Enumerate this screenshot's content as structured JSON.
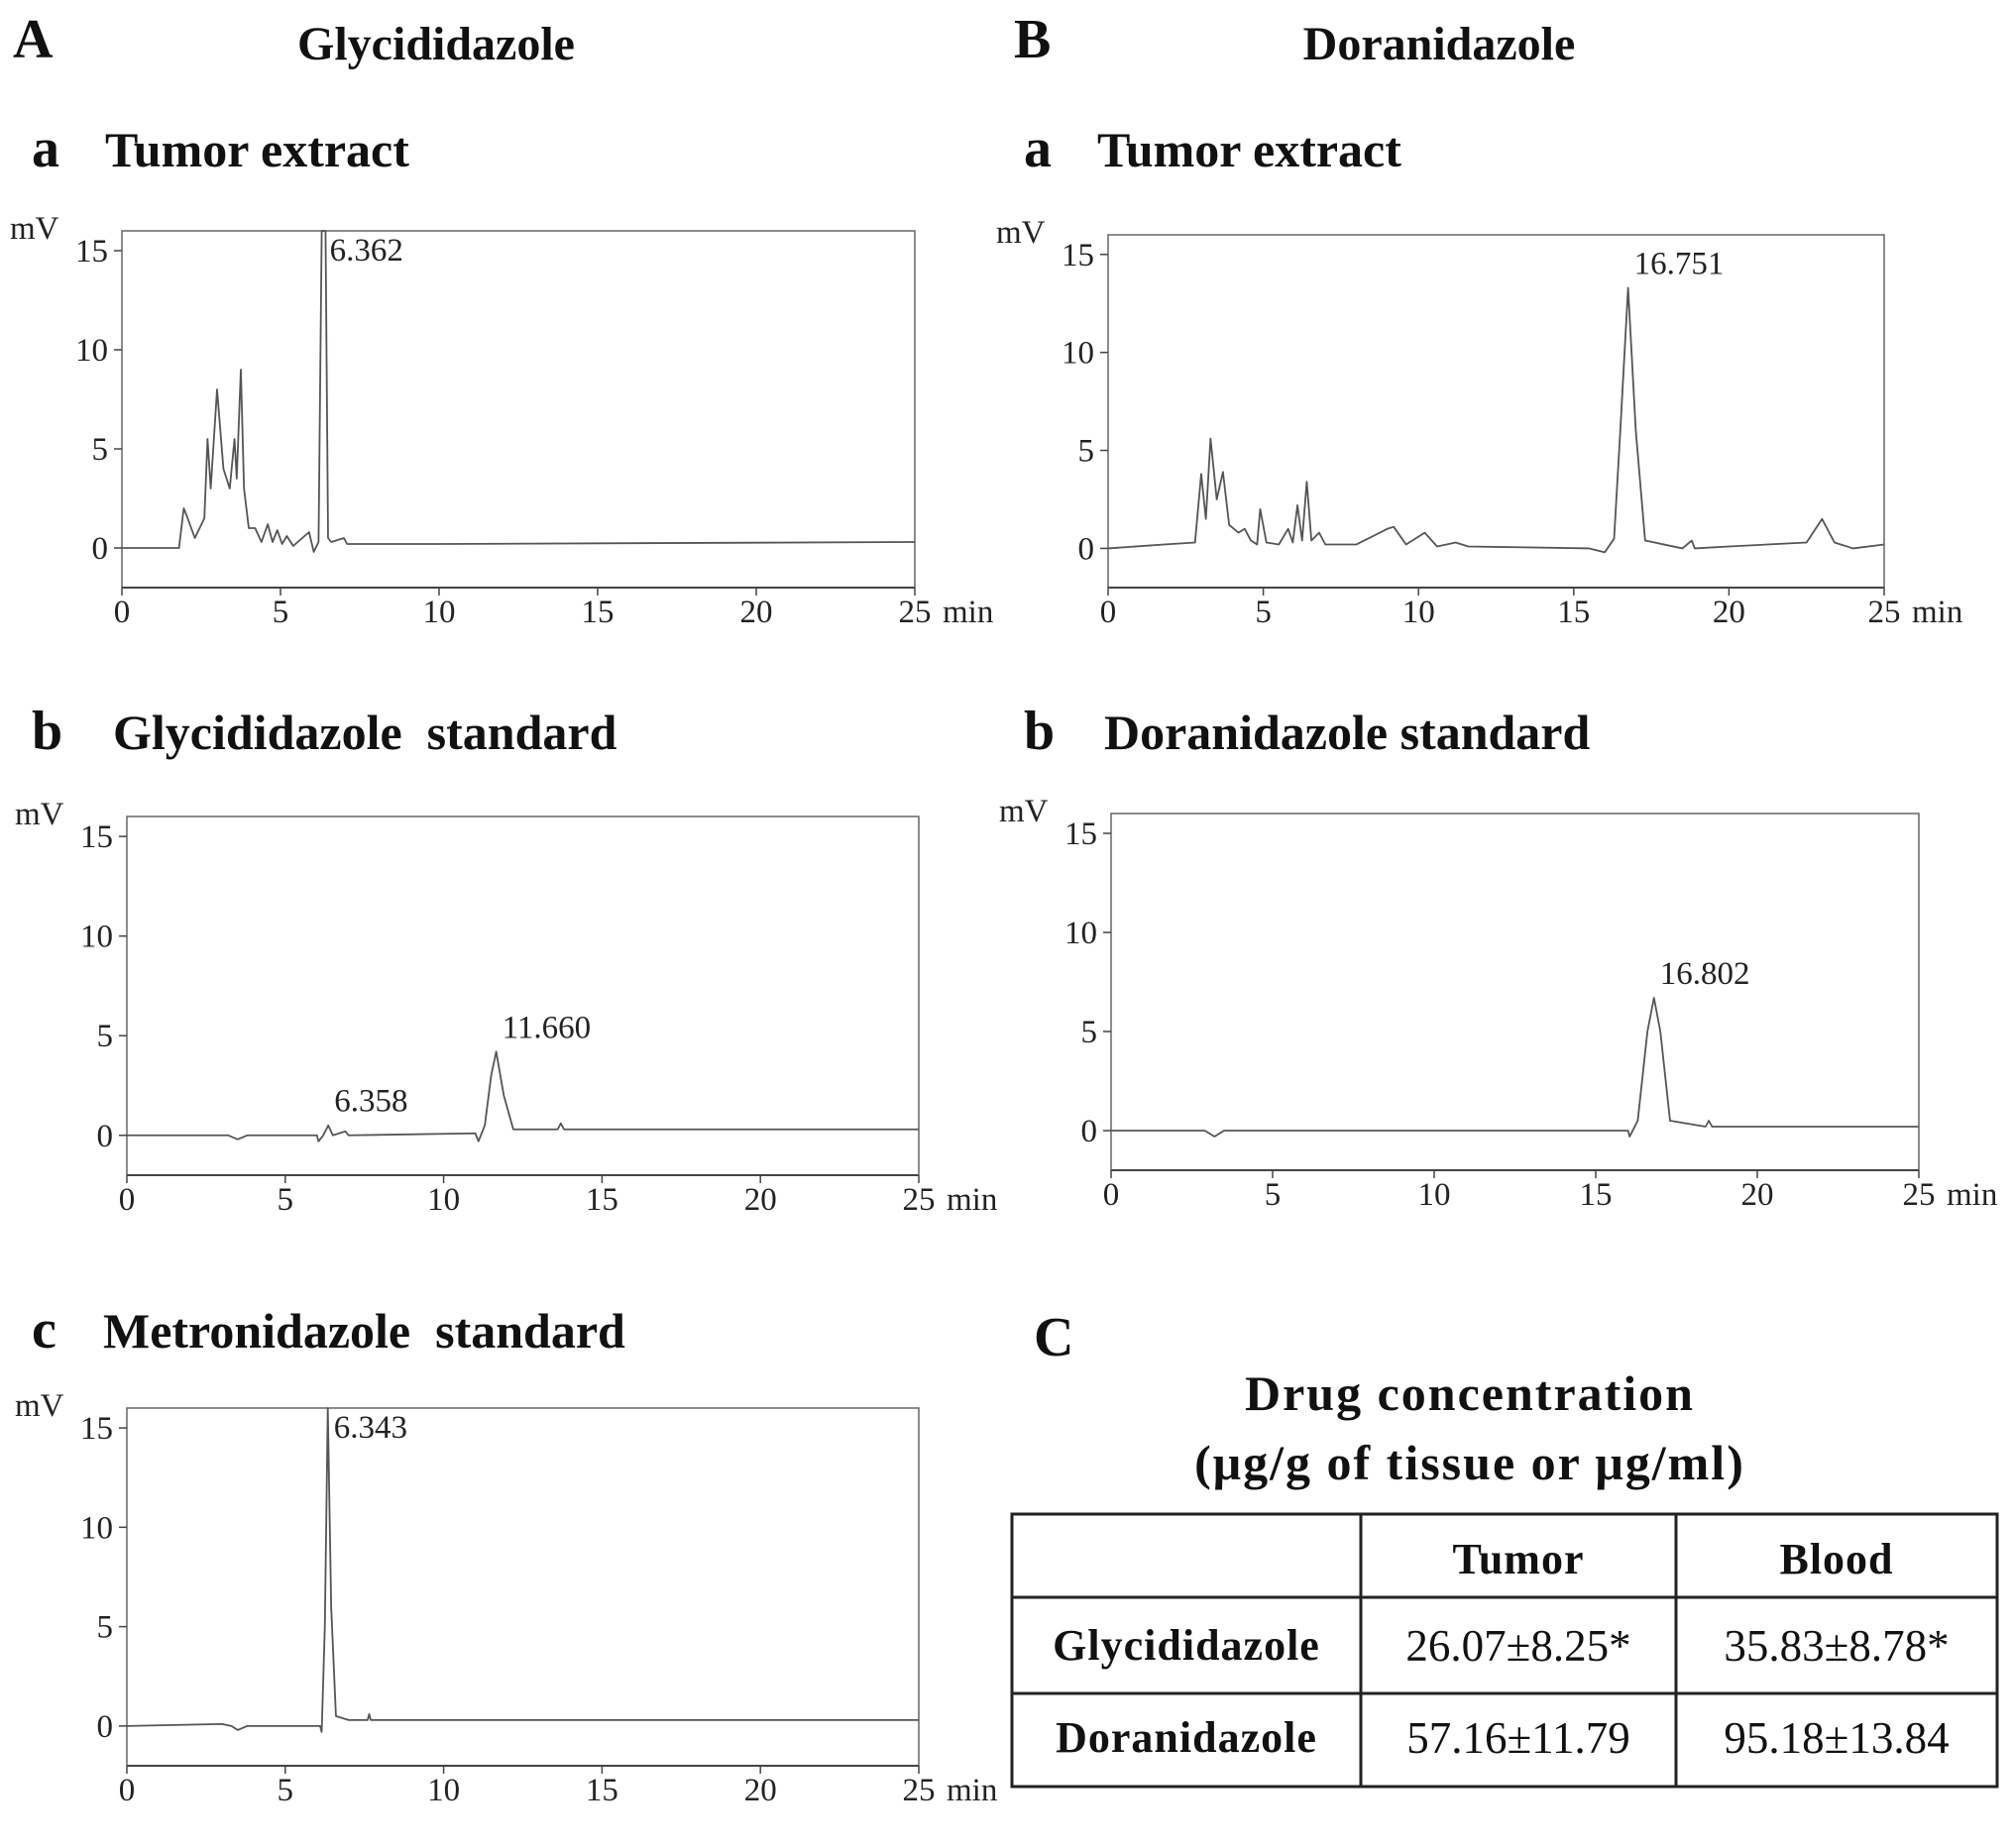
{
  "columns": [
    {
      "letter": "A",
      "title": "Glycididazole"
    },
    {
      "letter": "B",
      "title": "Doranidazole"
    }
  ],
  "chart_data": [
    {
      "type": "line",
      "panel_letter": "a",
      "title": "Tumor extract",
      "y_label": "mV",
      "x_label": "min",
      "xlim": [
        0,
        25
      ],
      "ylim": [
        -2,
        16
      ],
      "xticks": [
        0,
        5,
        10,
        15,
        20,
        25
      ],
      "yticks": [
        0,
        5,
        10,
        15
      ],
      "color": "#555555",
      "x": [
        0,
        1.8,
        1.95,
        2.05,
        2.3,
        2.6,
        2.7,
        2.8,
        3.0,
        3.2,
        3.4,
        3.55,
        3.62,
        3.75,
        3.85,
        4.0,
        4.2,
        4.4,
        4.6,
        4.75,
        4.9,
        5.05,
        5.2,
        5.4,
        5.9,
        6.05,
        6.2,
        6.3,
        6.362,
        6.42,
        6.5,
        6.6,
        7.0,
        7.1,
        10,
        25
      ],
      "values": [
        0,
        0,
        2,
        1.6,
        0.5,
        1.5,
        5.5,
        3,
        8,
        4,
        3,
        5.5,
        3.5,
        9,
        3,
        1,
        1,
        0.3,
        1.2,
        0.3,
        0.9,
        0.2,
        0.6,
        0.1,
        0.8,
        -0.2,
        0.3,
        16,
        16,
        16,
        0.5,
        0.3,
        0.5,
        0.2,
        0.2,
        0.3
      ],
      "annotations": [
        {
          "x": 6.362,
          "label": "6.362"
        }
      ]
    },
    {
      "type": "line",
      "panel_letter": "b",
      "title": "Glycididazole  standard",
      "y_label": "mV",
      "x_label": "min",
      "xlim": [
        0,
        25
      ],
      "ylim": [
        -2,
        16
      ],
      "xticks": [
        0,
        5,
        10,
        15,
        20,
        25
      ],
      "yticks": [
        0,
        5,
        10,
        15
      ],
      "color": "#555555",
      "x": [
        0,
        3.2,
        3.5,
        3.8,
        6.0,
        6.05,
        6.2,
        6.358,
        6.5,
        6.9,
        7.0,
        11.0,
        11.1,
        11.3,
        11.5,
        11.66,
        11.9,
        12.2,
        13.6,
        13.7,
        13.8,
        25
      ],
      "values": [
        0,
        0,
        -0.2,
        0,
        0,
        -0.3,
        0,
        0.5,
        0,
        0.2,
        0,
        0.1,
        -0.3,
        0.5,
        3,
        4.2,
        2,
        0.3,
        0.3,
        0.6,
        0.3,
        0.3
      ],
      "annotations": [
        {
          "x": 6.358,
          "label": "6.358"
        },
        {
          "x": 11.66,
          "label": "11.660"
        }
      ]
    },
    {
      "type": "line",
      "panel_letter": "c",
      "title": "Metronidazole  standard",
      "y_label": "mV",
      "x_label": "min",
      "xlim": [
        0,
        25
      ],
      "ylim": [
        -2,
        16
      ],
      "xticks": [
        0,
        5,
        10,
        15,
        20,
        25
      ],
      "yticks": [
        0,
        5,
        10,
        15
      ],
      "color": "#555555",
      "x": [
        0,
        3.0,
        3.3,
        3.5,
        3.8,
        6.1,
        6.15,
        6.25,
        6.343,
        6.45,
        6.6,
        7.0,
        7.6,
        7.65,
        7.7,
        25
      ],
      "values": [
        0,
        0.1,
        0,
        -0.2,
        0,
        0,
        -0.3,
        5,
        16,
        6,
        0.5,
        0.3,
        0.3,
        0.6,
        0.3,
        0.3
      ],
      "annotations": [
        {
          "x": 6.343,
          "label": "6.343"
        }
      ]
    },
    {
      "type": "line",
      "panel_letter": "a",
      "title": "Tumor extract",
      "y_label": "mV",
      "x_label": "min",
      "xlim": [
        0,
        25
      ],
      "ylim": [
        -2,
        16
      ],
      "xticks": [
        0,
        5,
        10,
        15,
        20,
        25
      ],
      "yticks": [
        0,
        5,
        10,
        15
      ],
      "color": "#555555",
      "x": [
        0,
        1.8,
        2.8,
        3.0,
        3.15,
        3.3,
        3.5,
        3.7,
        3.9,
        4.2,
        4.4,
        4.6,
        4.8,
        4.9,
        5.1,
        5.5,
        5.8,
        5.95,
        6.1,
        6.25,
        6.4,
        6.55,
        6.8,
        7.0,
        8.0,
        9.0,
        9.2,
        9.6,
        10.2,
        10.6,
        11.2,
        11.6,
        15.5,
        16.0,
        16.3,
        16.5,
        16.751,
        17.0,
        17.3,
        18.5,
        18.8,
        18.9,
        20,
        22.5,
        23.0,
        23.4,
        24,
        25
      ],
      "values": [
        0,
        0.2,
        0.3,
        3.8,
        1.5,
        5.6,
        2.5,
        3.9,
        1.2,
        0.8,
        1,
        0.4,
        0.2,
        2,
        0.3,
        0.2,
        1,
        0.3,
        2.2,
        0.4,
        3.4,
        0.4,
        0.8,
        0.2,
        0.2,
        1.0,
        1.1,
        0.2,
        0.8,
        0.1,
        0.3,
        0.1,
        0,
        -0.2,
        0.5,
        6,
        13.3,
        6,
        0.4,
        0,
        0.4,
        0,
        0.1,
        0.3,
        1.5,
        0.3,
        0,
        0.2
      ],
      "annotations": [
        {
          "x": 16.751,
          "label": "16.751"
        }
      ]
    },
    {
      "type": "line",
      "panel_letter": "b",
      "title": "Doranidazole standard",
      "y_label": "mV",
      "x_label": "min",
      "xlim": [
        0,
        25
      ],
      "ylim": [
        -2,
        16
      ],
      "xticks": [
        0,
        5,
        10,
        15,
        20,
        25
      ],
      "yticks": [
        0,
        5,
        10,
        15
      ],
      "color": "#555555",
      "x": [
        0,
        2.9,
        3.2,
        3.5,
        16.0,
        16.05,
        16.3,
        16.6,
        16.802,
        17.0,
        17.3,
        18.4,
        18.5,
        18.6,
        25
      ],
      "values": [
        0,
        0,
        -0.3,
        0,
        0,
        -0.3,
        0.5,
        5,
        6.7,
        5,
        0.5,
        0.2,
        0.5,
        0.2,
        0.2
      ],
      "annotations": [
        {
          "x": 16.802,
          "label": "16.802"
        }
      ]
    }
  ],
  "table": {
    "letter": "C",
    "title_lines": [
      "Drug concentration",
      "(μg/g of tissue or μg/ml)"
    ],
    "header": [
      "Tumor",
      "Blood"
    ],
    "rows": [
      {
        "label": "Glycididazole",
        "cells": [
          "26.07±8.25*",
          "35.83±8.78*"
        ]
      },
      {
        "label": "Doranidazole",
        "cells": [
          "57.16±11.79",
          "95.18±13.84"
        ]
      }
    ]
  }
}
